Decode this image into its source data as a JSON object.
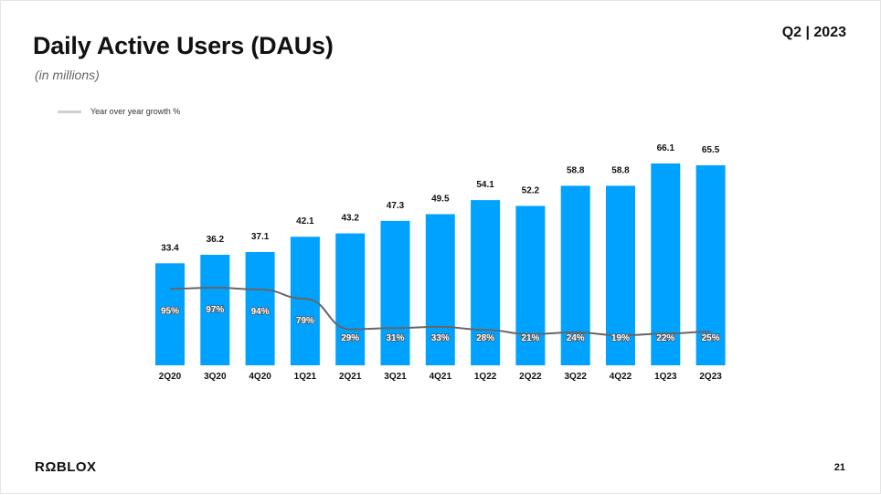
{
  "header": {
    "title": "Daily Active Users (DAUs)",
    "subtitle": "(in millions)",
    "period": "Q2 | 2023"
  },
  "legend": {
    "label": "Year over year growth %"
  },
  "footer": {
    "logo": "RΩBLOX",
    "page_number": "21"
  },
  "colors": {
    "bar": "#00a2ff",
    "line": "#666666",
    "legend_line": "#d0d0d0"
  },
  "chart_data": {
    "type": "bar",
    "categories": [
      "2Q20",
      "3Q20",
      "4Q20",
      "1Q21",
      "2Q21",
      "3Q21",
      "4Q21",
      "1Q22",
      "2Q22",
      "3Q22",
      "4Q22",
      "1Q23",
      "2Q23"
    ],
    "series": [
      {
        "values": [
          33.4,
          36.2,
          37.1,
          42.1,
          43.2,
          47.3,
          49.5,
          54.1,
          52.2,
          58.8,
          58.8,
          66.1,
          65.5
        ]
      },
      {
        "name": "Year over year growth %",
        "type": "line",
        "values": [
          95,
          97,
          94,
          79,
          29,
          31,
          33,
          28,
          21,
          24,
          19,
          22,
          25
        ]
      }
    ],
    "value_labels": [
      "33.4",
      "36.2",
      "37.1",
      "42.1",
      "43.2",
      "47.3",
      "49.5",
      "54.1",
      "52.2",
      "58.8",
      "58.8",
      "66.1",
      "65.5"
    ],
    "growth_labels": [
      "95%",
      "97%",
      "94%",
      "79%",
      "29%",
      "31%",
      "33%",
      "28%",
      "21%",
      "24%",
      "19%",
      "22%",
      "25%"
    ],
    "title": "Daily Active Users (DAUs)",
    "ylabel": "(in millions)",
    "legend_position": "top-left",
    "grid": false
  }
}
